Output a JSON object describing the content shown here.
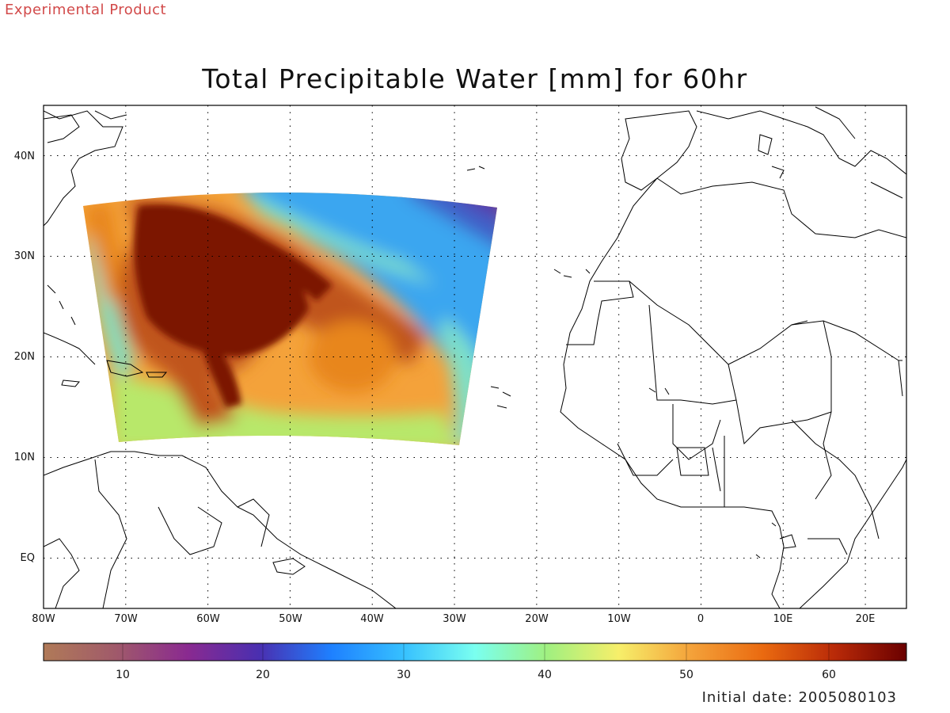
{
  "header": {
    "product_label": "Experimental Product"
  },
  "title": "Total Precipitable Water [mm] for 60hr",
  "map": {
    "lon_range": [
      -80,
      25
    ],
    "lat_range": [
      -5,
      45
    ],
    "lat_labels": [
      "40N",
      "30N",
      "20N",
      "10N",
      "EQ"
    ],
    "lon_labels": [
      "80W",
      "70W",
      "60W",
      "50W",
      "40W",
      "30W",
      "20W",
      "10W",
      "0",
      "10E",
      "20E"
    ],
    "gridlines": "dotted",
    "field_colors": {
      "max": "#7b1200",
      "high": "#c0541a",
      "mid_high": "#e8861c",
      "mid": "#f4a23a",
      "moist": "#b8e86a",
      "medium": "#7ee0c8",
      "dry": "#3ba6f0",
      "very_dry": "#4060c8",
      "driest": "#5a3aa8"
    }
  },
  "colorbar": {
    "labels": [
      "10",
      "20",
      "30",
      "40",
      "50",
      "60"
    ],
    "stops": [
      "#b07a58",
      "#a05a6a",
      "#8a2a90",
      "#4a2fb0",
      "#1e80ff",
      "#36c0ff",
      "#7afff0",
      "#a0f080",
      "#f7ef6a",
      "#f4a23a",
      "#ea6a10",
      "#b92a08",
      "#6a0000"
    ]
  },
  "footer": {
    "initial_date": "Initial date: 2005080103"
  }
}
